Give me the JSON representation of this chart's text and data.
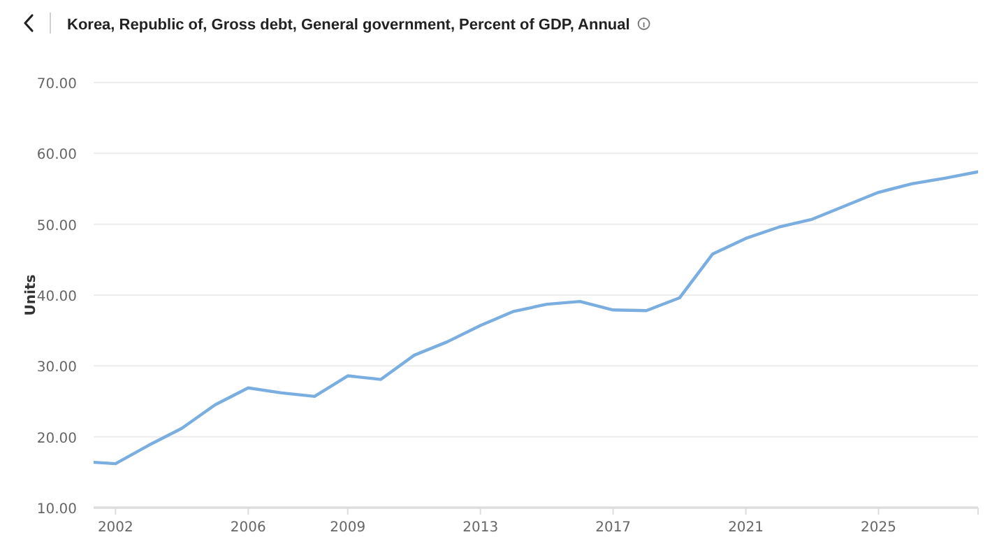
{
  "chart_data": {
    "type": "line",
    "title": "Korea, Republic of, Gross debt, General government, Percent of GDP, Annual",
    "ylabel": "Units",
    "x": [
      2001.34,
      2002,
      2003,
      2004,
      2005,
      2006,
      2007,
      2008,
      2009,
      2010,
      2011,
      2012,
      2013,
      2014,
      2015,
      2016,
      2017,
      2018,
      2019,
      2020,
      2021,
      2022,
      2023,
      2024,
      2025,
      2026,
      2027,
      2028
    ],
    "series": [
      {
        "color": "#7aaee0",
        "values": [
          16.4,
          16.2,
          18.8,
          21.2,
          24.5,
          26.9,
          26.2,
          25.7,
          28.6,
          28.1,
          31.5,
          33.4,
          35.7,
          37.7,
          38.7,
          39.1,
          37.9,
          37.8,
          39.6,
          45.8,
          48.0,
          49.6,
          50.7,
          52.6,
          54.5,
          55.7,
          56.5,
          57.4
        ]
      }
    ],
    "xlim": [
      2001.34,
      2028
    ],
    "xticks": [
      2002,
      2006,
      2009,
      2013,
      2017,
      2021,
      2025
    ],
    "ylim": [
      10,
      70
    ],
    "yticks": [
      {
        "value": 10,
        "label": "10.00"
      },
      {
        "value": 20,
        "label": "20.00"
      },
      {
        "value": 30,
        "label": "30.00"
      },
      {
        "value": 40,
        "label": "40.00"
      },
      {
        "value": 50,
        "label": "50.00"
      },
      {
        "value": 60,
        "label": "60.00"
      },
      {
        "value": 70,
        "label": "70.00"
      }
    ],
    "grid": "y",
    "marker": "none",
    "line_style": "solid"
  }
}
